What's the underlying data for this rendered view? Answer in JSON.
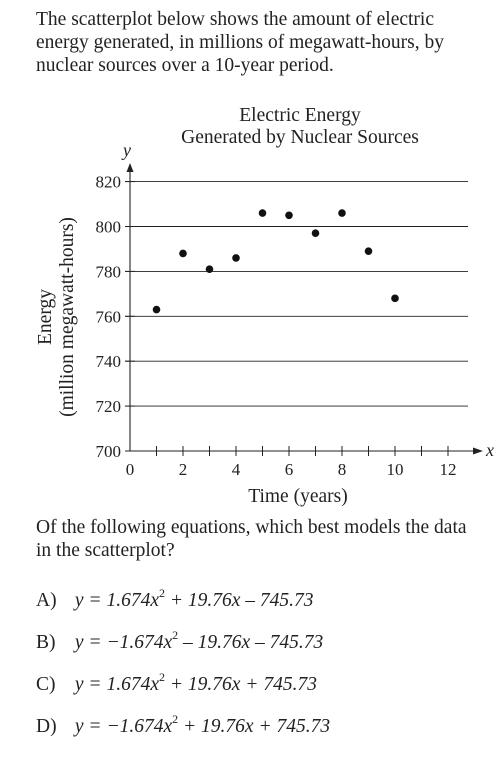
{
  "question": {
    "stem": "The scatterplot below shows the amount of electric energy generated, in millions of megawatt-hours, by nuclear sources over a 10-year period.",
    "prompt": "Of the following equations, which best models the data in the scatterplot?"
  },
  "choices": [
    {
      "letter": "A)",
      "prefix": "y = 1.674x",
      "exp": "2",
      "suffix": " + 19.76x – 745.73"
    },
    {
      "letter": "B)",
      "prefix": "y = −1.674x",
      "exp": "2",
      "suffix": " – 19.76x – 745.73"
    },
    {
      "letter": "C)",
      "prefix": "y = 1.674x",
      "exp": "2",
      "suffix": " + 19.76x + 745.73"
    },
    {
      "letter": "D)",
      "prefix": "y = −1.674x",
      "exp": "2",
      "suffix": " + 19.76x + 745.73"
    }
  ],
  "chart_data": {
    "type": "scatter",
    "title": "Electric Energy",
    "subtitle": "Generated by Nuclear Sources",
    "xlabel": "Time (years)",
    "ylabel_line1": "Energy",
    "ylabel_line2": "(million megawatt-hours)",
    "x_axis_var": "x",
    "y_axis_var": "y",
    "xlim": [
      0,
      12.8
    ],
    "ylim": [
      700,
      823
    ],
    "x_ticks": [
      0,
      2,
      4,
      6,
      8,
      10,
      12
    ],
    "y_ticks": [
      700,
      720,
      740,
      760,
      780,
      800,
      820
    ],
    "grid": "horizontal",
    "points": [
      {
        "x": 1,
        "y": 763
      },
      {
        "x": 2,
        "y": 788
      },
      {
        "x": 3,
        "y": 781
      },
      {
        "x": 4,
        "y": 786
      },
      {
        "x": 5,
        "y": 806
      },
      {
        "x": 6,
        "y": 805
      },
      {
        "x": 7,
        "y": 797
      },
      {
        "x": 8,
        "y": 806
      },
      {
        "x": 9,
        "y": 789
      },
      {
        "x": 10,
        "y": 768
      }
    ],
    "colors": {
      "axis": "#222222",
      "grid": "#222222",
      "point": "#111111"
    }
  }
}
